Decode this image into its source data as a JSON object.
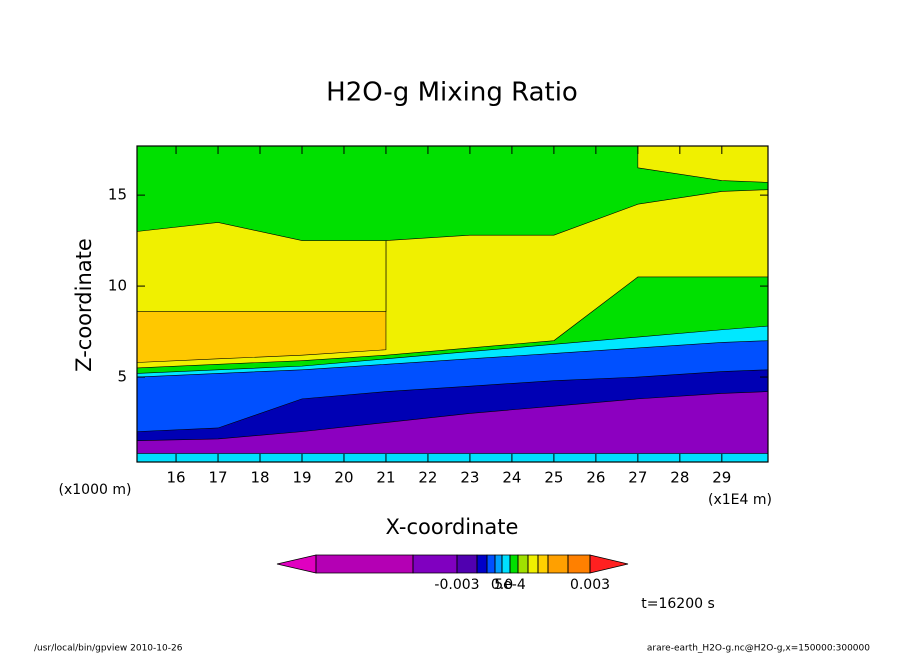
{
  "chart_data": {
    "type": "contour",
    "title": "H2O-g Mixing Ratio",
    "x_label": "X-coordinate",
    "y_label": "Z-coordinate",
    "x_unit": "(x1E4 m)",
    "y_unit": "(x1000 m)",
    "x": [
      15.07,
      17,
      19,
      21,
      23,
      25,
      27,
      29,
      30.1
    ],
    "series": [
      {
        "color": "#8c00c0",
        "values": [
          0.8,
          0.8,
          0.8,
          0.8,
          0.8,
          0.8,
          0.8,
          0.8,
          0.8
        ]
      },
      {
        "color": "#0000b4",
        "values": [
          1.5,
          1.6,
          2.0,
          2.5,
          3.0,
          3.4,
          3.8,
          4.1,
          4.2
        ]
      },
      {
        "color": "#0050ff",
        "values": [
          2.0,
          2.2,
          3.8,
          4.2,
          4.5,
          4.8,
          5.0,
          5.3,
          5.4
        ]
      },
      {
        "color": "#00e8ff",
        "values": [
          5.0,
          5.2,
          5.4,
          5.7,
          6.0,
          6.3,
          6.6,
          6.9,
          7.0
        ]
      },
      {
        "color": "#00e000",
        "values": [
          5.2,
          5.4,
          5.6,
          6.0,
          6.4,
          6.8,
          7.2,
          7.6,
          7.8
        ]
      },
      {
        "color": "#f0f000",
        "values": [
          5.5,
          5.7,
          5.9,
          6.2,
          6.6,
          7.0,
          10.5,
          10.5,
          10.5
        ]
      },
      {
        "color": "#ffc800",
        "values": [
          5.8,
          6.0,
          6.2,
          6.5,
          null,
          null,
          null,
          null,
          null
        ]
      },
      {
        "color": "#f0f000",
        "values": [
          8.6,
          8.6,
          8.6,
          8.6,
          null,
          null,
          null,
          null,
          null
        ]
      },
      {
        "color": "#00e000",
        "values": [
          13,
          13.5,
          12.5,
          12.5,
          12.8,
          12.8,
          14.5,
          15.2,
          15.3
        ]
      },
      {
        "color": "#f0f000",
        "values": [
          null,
          null,
          null,
          null,
          null,
          null,
          16.5,
          15.8,
          15.7
        ]
      }
    ],
    "xlim": [
      15.07,
      30.1
    ],
    "ylim": [
      0.33,
      17.7
    ],
    "xticks": [
      16,
      17,
      18,
      19,
      20,
      21,
      22,
      23,
      24,
      25,
      26,
      27,
      28,
      29
    ],
    "yticks": [
      5,
      10,
      15
    ],
    "colorbar": {
      "levels": [
        -0.02,
        -0.01,
        -0.003,
        -0.002,
        -0.001,
        -0.0005,
        0,
        0.0005,
        0.001,
        0.0015,
        0.002,
        0.0025,
        0.0028,
        0.003
      ],
      "colors": [
        "#e000c0",
        "#b400b4",
        "#8000c0",
        "#5000b0",
        "#0000c8",
        "#0050ff",
        "#00a0ff",
        "#00e0ff",
        "#00e000",
        "#a0e000",
        "#f0f000",
        "#ffd000",
        "#ffa000",
        "#ff8000",
        "#ff2020"
      ],
      "ticks": [
        {
          "value": -0.003,
          "label": "-0.003"
        },
        {
          "value": 0,
          "label": "0.0"
        },
        {
          "value": 0.0005,
          "label": "5e-4"
        },
        0.003
      ]
    },
    "time_label": "t=16200 s",
    "footer_left": "/usr/local/bin/gpview  2010-10-26",
    "footer_right": "arare-earth_H2O-g.nc@H2O-g,x=150000:300000"
  }
}
